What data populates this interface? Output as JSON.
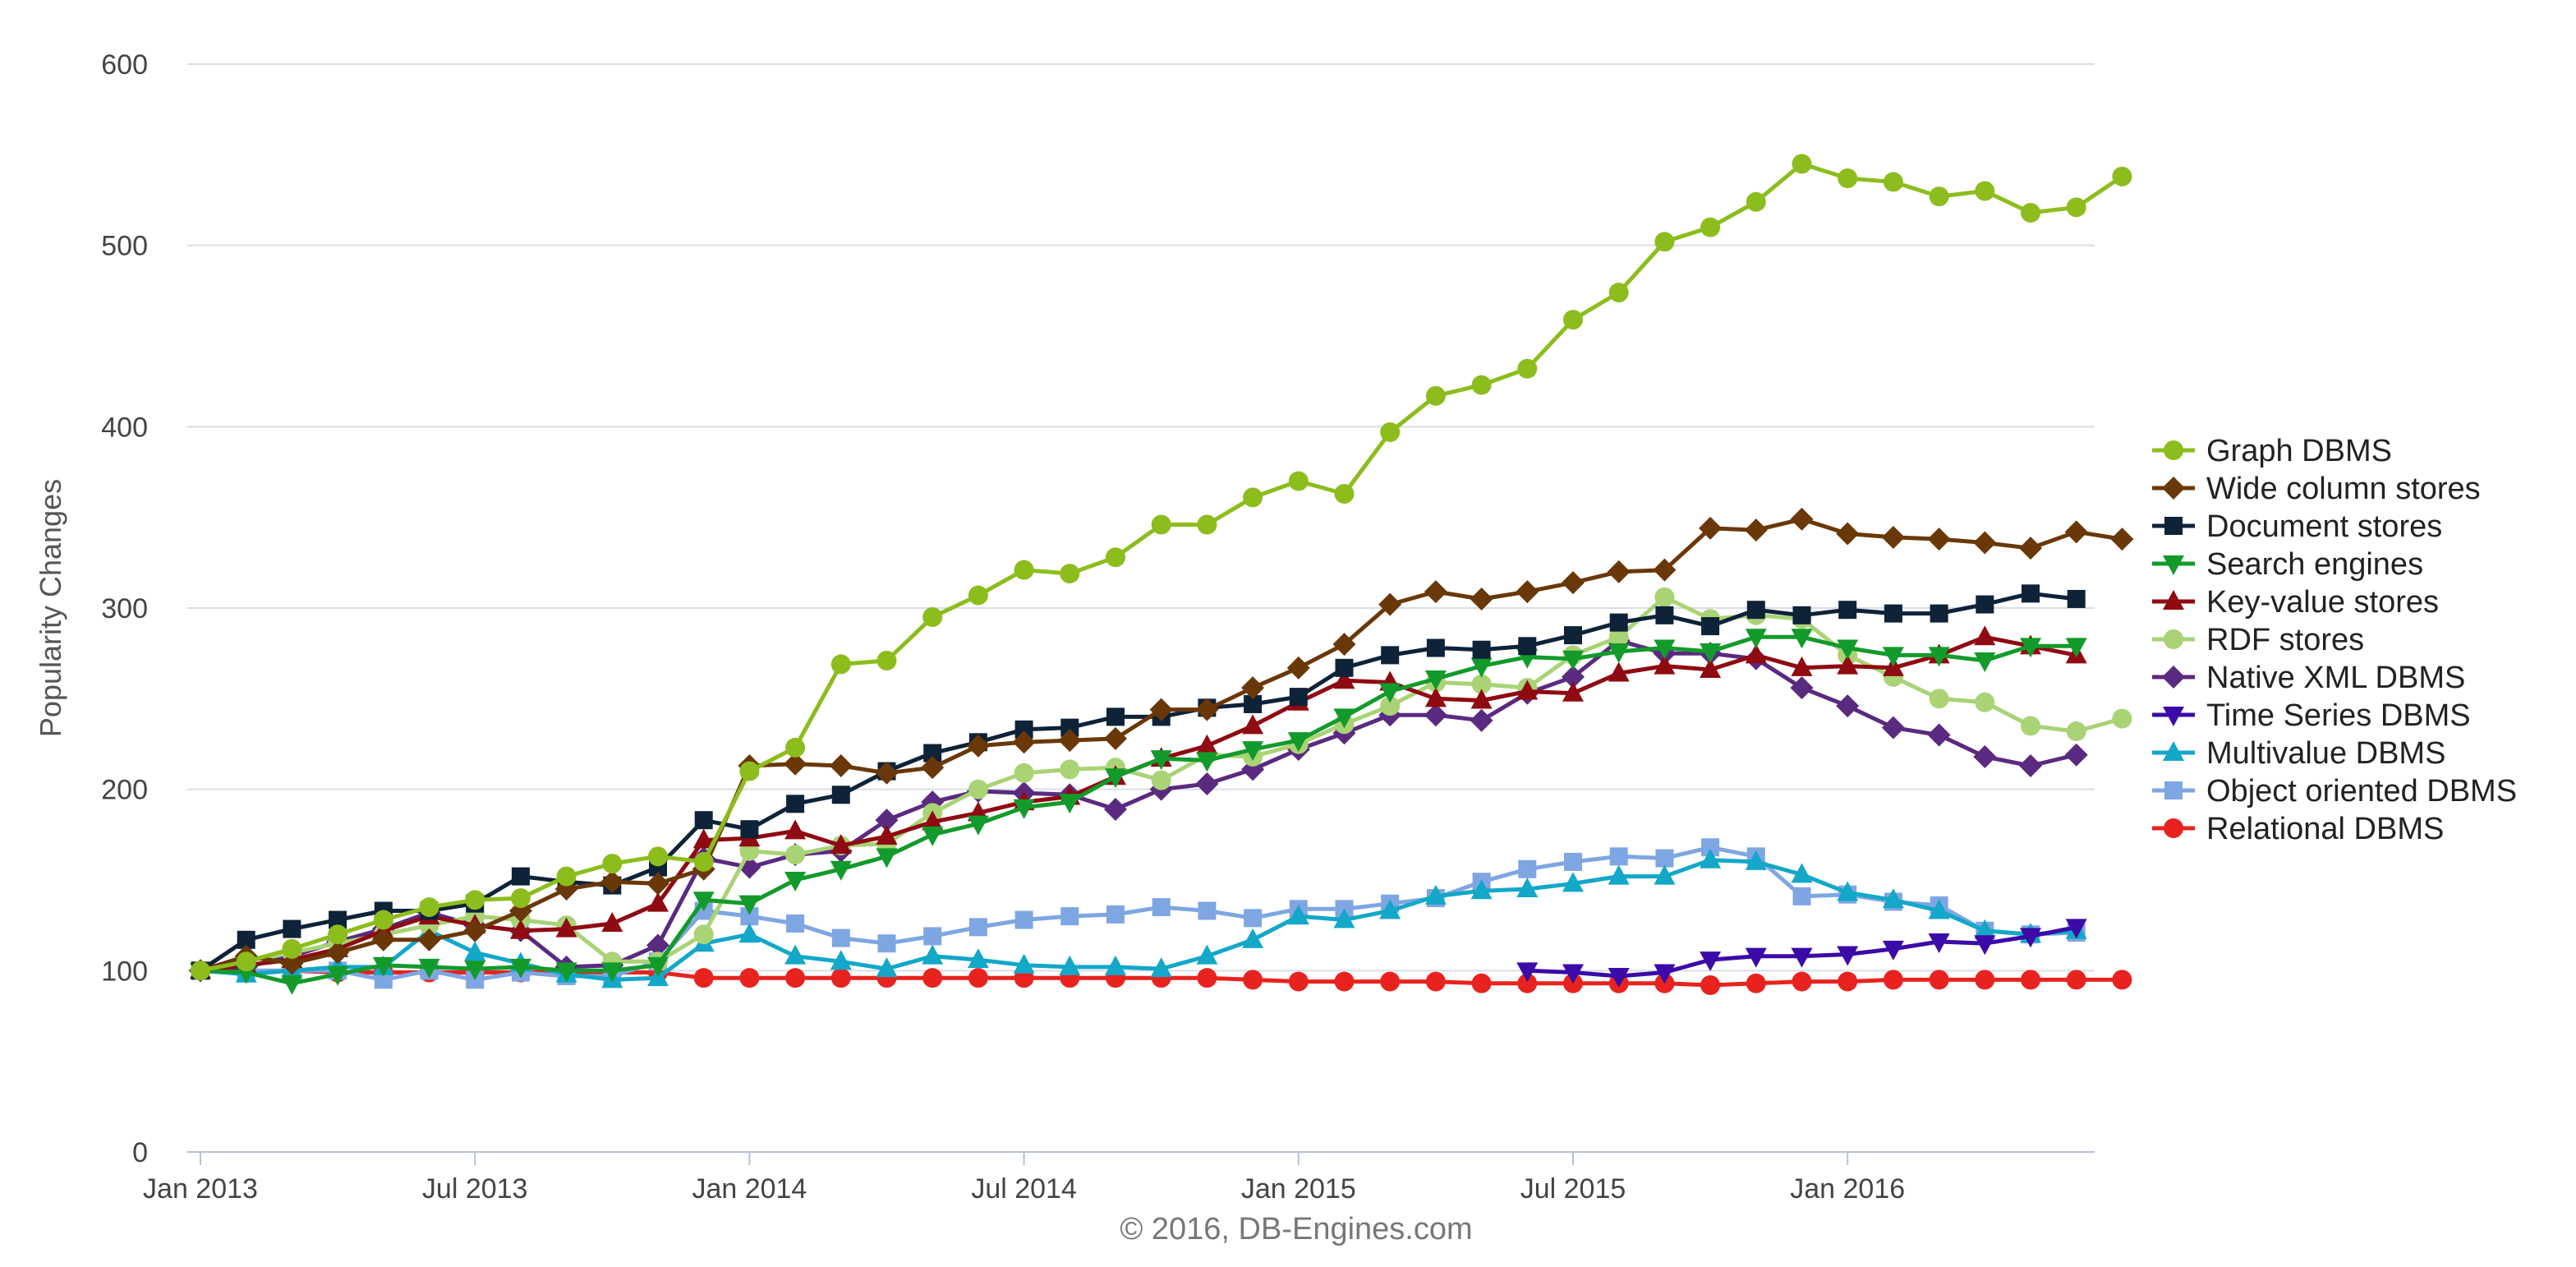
{
  "chart_data": {
    "type": "line",
    "ylabel": "Popularity Changes",
    "ylim": [
      0,
      600
    ],
    "yticks": [
      "0",
      "100",
      "200",
      "300",
      "400",
      "500",
      "600"
    ],
    "xticks": [
      {
        "label": "Jan 2013",
        "month": 0
      },
      {
        "label": "Jul 2013",
        "month": 6
      },
      {
        "label": "Jan 2014",
        "month": 12
      },
      {
        "label": "Jul 2014",
        "month": 18
      },
      {
        "label": "Jan 2015",
        "month": 24
      },
      {
        "label": "Jul 2015",
        "month": 30
      },
      {
        "label": "Jan 2016",
        "month": 36
      }
    ],
    "x_start": "Jan 2013",
    "x_step": "1 month",
    "grid": true,
    "legend_position": "right",
    "credit": "© 2016, DB-Engines.com",
    "series": [
      {
        "name": "Graph DBMS",
        "color": "#8cbd1d",
        "marker": "circle",
        "start": 0,
        "values": [
          100,
          105,
          112,
          120,
          128,
          135,
          139,
          140,
          152,
          159,
          163,
          160,
          210,
          223,
          269,
          271,
          295,
          307,
          321,
          319,
          328,
          346,
          346,
          361,
          370,
          363,
          397,
          417,
          423,
          432,
          459,
          474,
          502,
          510,
          524,
          545,
          537,
          535,
          527,
          530,
          518,
          521,
          538
        ]
      },
      {
        "name": "Wide column stores",
        "color": "#6a3808",
        "marker": "diamond",
        "start": 0,
        "values": [
          100,
          108,
          104,
          110,
          117,
          117,
          122,
          133,
          145,
          149,
          148,
          156,
          213,
          214,
          213,
          209,
          212,
          224,
          226,
          227,
          228,
          244,
          244,
          256,
          267,
          280,
          302,
          309,
          305,
          309,
          314,
          320,
          321,
          344,
          343,
          349,
          341,
          339,
          338,
          336,
          333,
          342,
          338
        ]
      },
      {
        "name": "Document stores",
        "color": "#0e2238",
        "marker": "square",
        "start": 0,
        "values": [
          100,
          117,
          123,
          128,
          133,
          133,
          137,
          152,
          149,
          147,
          157,
          183,
          178,
          192,
          197,
          210,
          220,
          226,
          233,
          234,
          240,
          240,
          245,
          247,
          251,
          267,
          274,
          278,
          277,
          279,
          285,
          292,
          296,
          290,
          299,
          296,
          299,
          297,
          297,
          302,
          308,
          305
        ]
      },
      {
        "name": "Search engines",
        "color": "#129a2b",
        "marker": "triangle-down",
        "start": 0,
        "values": [
          100,
          99,
          93,
          98,
          103,
          102,
          101,
          102,
          100,
          100,
          103,
          139,
          137,
          150,
          156,
          163,
          175,
          181,
          190,
          193,
          207,
          217,
          216,
          222,
          227,
          240,
          254,
          261,
          268,
          273,
          272,
          276,
          278,
          276,
          284,
          284,
          278,
          274,
          274,
          271,
          279,
          279
        ]
      },
      {
        "name": "Key-value stores",
        "color": "#8f0a11",
        "marker": "triangle-up",
        "start": 0,
        "values": [
          100,
          103,
          106,
          112,
          122,
          130,
          125,
          122,
          123,
          126,
          137,
          172,
          173,
          177,
          169,
          174,
          182,
          187,
          193,
          196,
          207,
          217,
          224,
          235,
          248,
          260,
          259,
          250,
          249,
          254,
          253,
          264,
          268,
          266,
          274,
          267,
          268,
          267,
          274,
          284,
          279,
          274
        ]
      },
      {
        "name": "RDF stores",
        "color": "#a9d375",
        "marker": "circle",
        "start": 0,
        "values": [
          100,
          105,
          110,
          115,
          120,
          125,
          130,
          128,
          125,
          105,
          105,
          120,
          166,
          164,
          169,
          170,
          187,
          200,
          209,
          211,
          212,
          205,
          219,
          218,
          225,
          236,
          246,
          259,
          258,
          256,
          274,
          284,
          306,
          294,
          296,
          294,
          274,
          262,
          250,
          248,
          235,
          232,
          239
        ]
      },
      {
        "name": "Native XML DBMS",
        "color": "#5a2a80",
        "marker": "diamond",
        "start": 0,
        "values": [
          100,
          102,
          108,
          116,
          123,
          132,
          125,
          122,
          102,
          103,
          114,
          162,
          157,
          164,
          166,
          183,
          193,
          199,
          198,
          197,
          189,
          200,
          203,
          211,
          222,
          231,
          241,
          241,
          238,
          253,
          262,
          282,
          275,
          275,
          272,
          256,
          246,
          234,
          230,
          218,
          213,
          219
        ]
      },
      {
        "name": "Time Series DBMS",
        "color": "#3b0aa8",
        "marker": "triangle-down",
        "start": 29,
        "values": [
          100,
          99,
          97,
          99,
          106,
          108,
          108,
          109,
          112,
          116,
          115,
          119,
          124
        ]
      },
      {
        "name": "Multivalue DBMS",
        "color": "#13a7c8",
        "marker": "triangle-up",
        "start": 0,
        "values": [
          100,
          98,
          100,
          102,
          102,
          122,
          110,
          104,
          98,
          95,
          96,
          115,
          120,
          108,
          105,
          101,
          108,
          106,
          103,
          102,
          102,
          101,
          108,
          117,
          130,
          128,
          133,
          141,
          144,
          145,
          148,
          152,
          152,
          161,
          160,
          153,
          143,
          139,
          133,
          122,
          120,
          122
        ]
      },
      {
        "name": "Object oriented DBMS",
        "color": "#7ea6e3",
        "marker": "square",
        "start": 0,
        "values": [
          100,
          100,
          100,
          100,
          95,
          100,
          95,
          99,
          97,
          97,
          105,
          133,
          130,
          126,
          118,
          115,
          119,
          124,
          128,
          130,
          131,
          135,
          133,
          129,
          134,
          134,
          137,
          140,
          149,
          156,
          160,
          163,
          162,
          168,
          163,
          141,
          142,
          138,
          136,
          122,
          120,
          121
        ]
      },
      {
        "name": "Relational DBMS",
        "color": "#e8231f",
        "marker": "circle",
        "start": 0,
        "values": [
          100,
          99,
          100,
          99,
          99,
          99,
          99,
          99,
          99,
          99,
          99,
          96,
          96,
          96,
          96,
          96,
          96,
          96,
          96,
          96,
          96,
          96,
          96,
          95,
          94,
          94,
          94,
          94,
          93,
          93,
          93,
          93,
          93,
          92,
          93,
          94,
          94,
          95,
          95,
          95,
          95,
          95,
          95
        ]
      }
    ]
  }
}
